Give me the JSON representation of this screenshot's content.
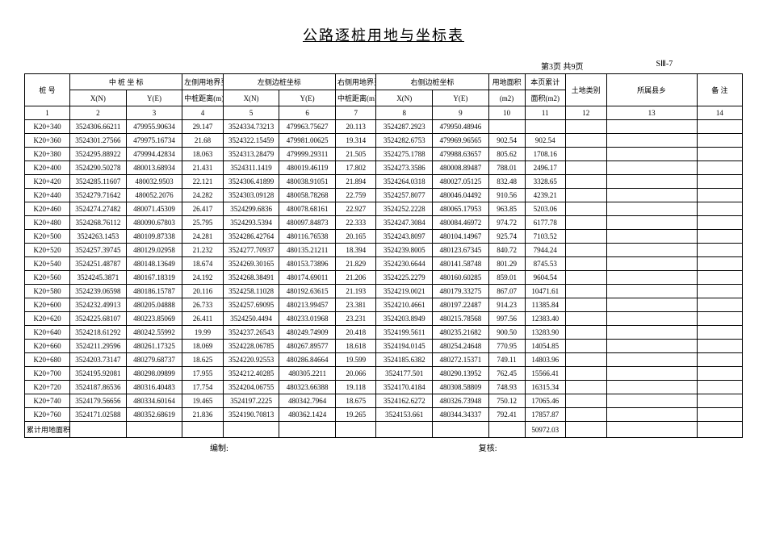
{
  "title": "公路逐桩用地与坐标表",
  "page_info": "第3页  共9页",
  "sheet_code": "SⅢ-7",
  "headers": {
    "stake": "桩    号",
    "center_coord": "中 桩 坐 标",
    "left_bound": "左侧用地界至",
    "left_edge": "左侧边桩坐标",
    "right_bound": "右侧用地界至",
    "right_edge": "右侧边桩坐标",
    "land_area": "用地面积",
    "cum_area": "本页累计",
    "land_type": "土地类别",
    "county": "所属县乡",
    "note": "备  注",
    "xn": "X(N)",
    "ye": "Y(E)",
    "center_dist": "中桩距离(m)",
    "m2": "(m2)",
    "area_m2": "面积(m2)"
  },
  "col_nums": [
    "1",
    "2",
    "3",
    "4",
    "5",
    "6",
    "7",
    "8",
    "9",
    "10",
    "11",
    "12",
    "13",
    "14"
  ],
  "rows": [
    {
      "s": "K20+340",
      "cx": "3524306.66211",
      "cy": "479955.90634",
      "ld": "29.147",
      "lx": "3524334.73213",
      "ly": "479963.75627",
      "rd": "20.113",
      "rx": "3524287.2923",
      "ry": "479950.48946",
      "a": "",
      "c": ""
    },
    {
      "s": "K20+360",
      "cx": "3524301.27566",
      "cy": "479975.16734",
      "ld": "21.68",
      "lx": "3524322.15459",
      "ly": "479981.00625",
      "rd": "19.314",
      "rx": "3524282.6753",
      "ry": "479969.96565",
      "a": "902.54",
      "c": "902.54"
    },
    {
      "s": "K20+380",
      "cx": "3524295.88922",
      "cy": "479994.42834",
      "ld": "18.063",
      "lx": "3524313.28479",
      "ly": "479999.29311",
      "rd": "21.505",
      "rx": "3524275.1788",
      "ry": "479988.63657",
      "a": "805.62",
      "c": "1708.16"
    },
    {
      "s": "K20+400",
      "cx": "3524290.50278",
      "cy": "480013.68934",
      "ld": "21.431",
      "lx": "3524311.1419",
      "ly": "480019.46119",
      "rd": "17.802",
      "rx": "3524273.3586",
      "ry": "480008.89487",
      "a": "788.01",
      "c": "2496.17"
    },
    {
      "s": "K20+420",
      "cx": "3524285.11607",
      "cy": "480032.9503",
      "ld": "22.121",
      "lx": "3524306.41899",
      "ly": "480038.91051",
      "rd": "21.894",
      "rx": "3524264.0318",
      "ry": "480027.05125",
      "a": "832.48",
      "c": "3328.65"
    },
    {
      "s": "K20+440",
      "cx": "3524279.71642",
      "cy": "480052.2076",
      "ld": "24.282",
      "lx": "3524303.09128",
      "ly": "480058.78268",
      "rd": "22.759",
      "rx": "3524257.8077",
      "ry": "480046.04492",
      "a": "910.56",
      "c": "4239.21"
    },
    {
      "s": "K20+460",
      "cx": "3524274.27482",
      "cy": "480071.45309",
      "ld": "26.417",
      "lx": "3524299.6836",
      "ly": "480078.68161",
      "rd": "22.927",
      "rx": "3524252.2228",
      "ry": "480065.17953",
      "a": "963.85",
      "c": "5203.06"
    },
    {
      "s": "K20+480",
      "cx": "3524268.76112",
      "cy": "480090.67803",
      "ld": "25.795",
      "lx": "3524293.5394",
      "ly": "480097.84873",
      "rd": "22.333",
      "rx": "3524247.3084",
      "ry": "480084.46972",
      "a": "974.72",
      "c": "6177.78"
    },
    {
      "s": "K20+500",
      "cx": "3524263.1453",
      "cy": "480109.87338",
      "ld": "24.281",
      "lx": "3524286.42764",
      "ly": "480116.76538",
      "rd": "20.165",
      "rx": "3524243.8097",
      "ry": "480104.14967",
      "a": "925.74",
      "c": "7103.52"
    },
    {
      "s": "K20+520",
      "cx": "3524257.39745",
      "cy": "480129.02958",
      "ld": "21.232",
      "lx": "3524277.70937",
      "ly": "480135.21211",
      "rd": "18.394",
      "rx": "3524239.8005",
      "ry": "480123.67345",
      "a": "840.72",
      "c": "7944.24"
    },
    {
      "s": "K20+540",
      "cx": "3524251.48787",
      "cy": "480148.13649",
      "ld": "18.674",
      "lx": "3524269.30165",
      "ly": "480153.73896",
      "rd": "21.829",
      "rx": "3524230.6644",
      "ry": "480141.58748",
      "a": "801.29",
      "c": "8745.53"
    },
    {
      "s": "K20+560",
      "cx": "3524245.3871",
      "cy": "480167.18319",
      "ld": "24.192",
      "lx": "3524268.38491",
      "ly": "480174.69011",
      "rd": "21.206",
      "rx": "3524225.2279",
      "ry": "480160.60285",
      "a": "859.01",
      "c": "9604.54"
    },
    {
      "s": "K20+580",
      "cx": "3524239.06598",
      "cy": "480186.15787",
      "ld": "20.116",
      "lx": "3524258.11028",
      "ly": "480192.63615",
      "rd": "21.193",
      "rx": "3524219.0021",
      "ry": "480179.33275",
      "a": "867.07",
      "c": "10471.61"
    },
    {
      "s": "K20+600",
      "cx": "3524232.49913",
      "cy": "480205.04888",
      "ld": "26.733",
      "lx": "3524257.69095",
      "ly": "480213.99457",
      "rd": "23.381",
      "rx": "3524210.4661",
      "ry": "480197.22487",
      "a": "914.23",
      "c": "11385.84"
    },
    {
      "s": "K20+620",
      "cx": "3524225.68107",
      "cy": "480223.85069",
      "ld": "26.411",
      "lx": "3524250.4494",
      "ly": "480233.01968",
      "rd": "23.231",
      "rx": "3524203.8949",
      "ry": "480215.78568",
      "a": "997.56",
      "c": "12383.40"
    },
    {
      "s": "K20+640",
      "cx": "3524218.61292",
      "cy": "480242.55992",
      "ld": "19.99",
      "lx": "3524237.26543",
      "ly": "480249.74909",
      "rd": "20.418",
      "rx": "3524199.5611",
      "ry": "480235.21682",
      "a": "900.50",
      "c": "13283.90"
    },
    {
      "s": "K20+660",
      "cx": "3524211.29596",
      "cy": "480261.17325",
      "ld": "18.069",
      "lx": "3524228.06785",
      "ly": "480267.89577",
      "rd": "18.618",
      "rx": "3524194.0145",
      "ry": "480254.24648",
      "a": "770.95",
      "c": "14054.85"
    },
    {
      "s": "K20+680",
      "cx": "3524203.73147",
      "cy": "480279.68737",
      "ld": "18.625",
      "lx": "3524220.92553",
      "ly": "480286.84664",
      "rd": "19.599",
      "rx": "3524185.6382",
      "ry": "480272.15371",
      "a": "749.11",
      "c": "14803.96"
    },
    {
      "s": "K20+700",
      "cx": "3524195.92081",
      "cy": "480298.09899",
      "ld": "17.955",
      "lx": "3524212.40285",
      "ly": "480305.2211",
      "rd": "20.066",
      "rx": "3524177.501",
      "ry": "480290.13952",
      "a": "762.45",
      "c": "15566.41"
    },
    {
      "s": "K20+720",
      "cx": "3524187.86536",
      "cy": "480316.40483",
      "ld": "17.754",
      "lx": "3524204.06755",
      "ly": "480323.66388",
      "rd": "19.118",
      "rx": "3524170.4184",
      "ry": "480308.58809",
      "a": "748.93",
      "c": "16315.34"
    },
    {
      "s": "K20+740",
      "cx": "3524179.56656",
      "cy": "480334.60164",
      "ld": "19.465",
      "lx": "3524197.2225",
      "ly": "480342.7964",
      "rd": "18.675",
      "rx": "3524162.6272",
      "ry": "480326.73948",
      "a": "750.12",
      "c": "17065.46"
    },
    {
      "s": "K20+760",
      "cx": "3524171.02588",
      "cy": "480352.68619",
      "ld": "21.836",
      "lx": "3524190.70813",
      "ly": "480362.1424",
      "rd": "19.265",
      "rx": "3524153.661",
      "ry": "480344.34337",
      "a": "792.41",
      "c": "17857.87"
    }
  ],
  "total_row": {
    "label": "累计用地面积",
    "value": "50972.03"
  },
  "footer": {
    "left": "编制:",
    "right": "复核:"
  }
}
